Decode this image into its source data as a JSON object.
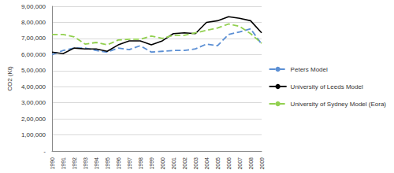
{
  "chart_data": {
    "type": "line",
    "y_label": "CO2 (Kt)",
    "categories": [
      "1990",
      "1991",
      "1992",
      "1993",
      "1994",
      "1995",
      "1996",
      "1997",
      "1998",
      "1999",
      "2000",
      "2001",
      "2002",
      "2003",
      "2004",
      "2005",
      "2006",
      "2007",
      "2008",
      "2009"
    ],
    "series": [
      {
        "name": "Peters Model",
        "color": "#5b8fd4",
        "line_style": "dashed",
        "values": [
          600000,
          625000,
          640000,
          640000,
          625000,
          615000,
          640000,
          630000,
          655000,
          615000,
          620000,
          625000,
          625000,
          635000,
          665000,
          655000,
          725000,
          740000,
          760000,
          665000
        ]
      },
      {
        "name": "University of Leeds Model",
        "color": "#000000",
        "line_style": "solid",
        "values": [
          615000,
          605000,
          640000,
          635000,
          635000,
          620000,
          660000,
          685000,
          685000,
          660000,
          685000,
          730000,
          735000,
          730000,
          800000,
          810000,
          835000,
          825000,
          810000,
          735000
        ]
      },
      {
        "name": "University of Sydney Model (Eora)",
        "color": "#92d050",
        "line_style": "dashed",
        "values": [
          725000,
          725000,
          710000,
          665000,
          675000,
          660000,
          690000,
          695000,
          695000,
          715000,
          700000,
          720000,
          720000,
          735000,
          750000,
          765000,
          790000,
          775000,
          730000,
          670000
        ]
      }
    ],
    "ylim": [
      0,
      900000
    ],
    "yticks": [
      {
        "value": 0,
        "label": "-"
      },
      {
        "value": 100000,
        "label": "1,00,000"
      },
      {
        "value": 200000,
        "label": "2,00,000"
      },
      {
        "value": 300000,
        "label": "3,00,000"
      },
      {
        "value": 400000,
        "label": "4,00,000"
      },
      {
        "value": 500000,
        "label": "5,00,000"
      },
      {
        "value": 600000,
        "label": "6,00,000"
      },
      {
        "value": 700000,
        "label": "7,00,000"
      },
      {
        "value": 800000,
        "label": "8,00,000"
      },
      {
        "value": 900000,
        "label": "9,00,000"
      }
    ],
    "grid": true,
    "legend": "right"
  }
}
